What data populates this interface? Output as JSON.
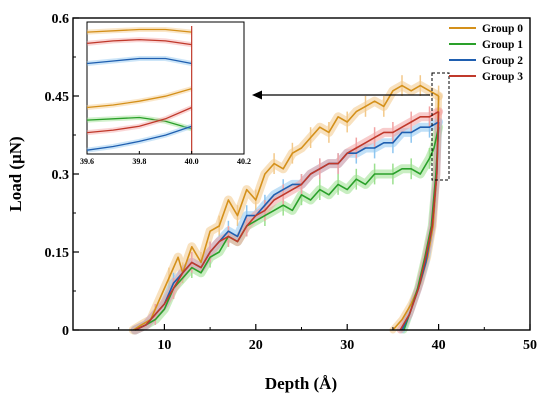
{
  "chart_data": {
    "type": "line",
    "xlabel": "Depth (Å)",
    "ylabel": "Load (μN)",
    "xlim": [
      0,
      50
    ],
    "ylim": [
      0,
      0.6
    ],
    "xticks": [
      "10",
      "20",
      "30",
      "40",
      "50"
    ],
    "yticks": [
      "0",
      "0.15",
      "0.3",
      "0.45",
      "0.6"
    ],
    "xtick_values": [
      10,
      20,
      30,
      40,
      50
    ],
    "ytick_values": [
      0,
      0.15,
      0.3,
      0.45,
      0.6
    ],
    "legend_position": "top-right",
    "grid": false,
    "series": [
      {
        "name": "Group 0",
        "color": "#d4901a",
        "band": "#f3c98a",
        "loading": [
          [
            6.6,
            0
          ],
          [
            7.5,
            0.01
          ],
          [
            8.5,
            0.02
          ],
          [
            9.5,
            0.06
          ],
          [
            10.5,
            0.1
          ],
          [
            11.5,
            0.14
          ],
          [
            12,
            0.11
          ],
          [
            13,
            0.16
          ],
          [
            14,
            0.13
          ],
          [
            15,
            0.19
          ],
          [
            16,
            0.2
          ],
          [
            17,
            0.25
          ],
          [
            18,
            0.22
          ],
          [
            19,
            0.27
          ],
          [
            20,
            0.25
          ],
          [
            21,
            0.3
          ],
          [
            22,
            0.32
          ],
          [
            23,
            0.31
          ],
          [
            24,
            0.34
          ],
          [
            25,
            0.35
          ],
          [
            26,
            0.37
          ],
          [
            27,
            0.39
          ],
          [
            28,
            0.38
          ],
          [
            29,
            0.41
          ],
          [
            30,
            0.4
          ],
          [
            31,
            0.42
          ],
          [
            32,
            0.43
          ],
          [
            33,
            0.44
          ],
          [
            34,
            0.43
          ],
          [
            35,
            0.46
          ],
          [
            36,
            0.47
          ],
          [
            37,
            0.46
          ],
          [
            38,
            0.47
          ],
          [
            39,
            0.46
          ],
          [
            40,
            0.45
          ]
        ],
        "unloading": [
          [
            40,
            0.45
          ],
          [
            39.8,
            0.3
          ],
          [
            39.4,
            0.2
          ],
          [
            38.8,
            0.14
          ],
          [
            38,
            0.09
          ],
          [
            37,
            0.05
          ],
          [
            36,
            0.02
          ],
          [
            35,
            0
          ]
        ]
      },
      {
        "name": "Group 1",
        "color": "#2aa02a",
        "band": "#9be08e",
        "loading": [
          [
            6.8,
            0
          ],
          [
            8,
            0.01
          ],
          [
            9,
            0.02
          ],
          [
            10,
            0.04
          ],
          [
            11,
            0.08
          ],
          [
            12,
            0.1
          ],
          [
            13,
            0.12
          ],
          [
            14,
            0.11
          ],
          [
            15,
            0.14
          ],
          [
            16,
            0.15
          ],
          [
            17,
            0.18
          ],
          [
            18,
            0.17
          ],
          [
            19,
            0.2
          ],
          [
            20,
            0.21
          ],
          [
            21,
            0.22
          ],
          [
            22,
            0.23
          ],
          [
            23,
            0.24
          ],
          [
            24,
            0.23
          ],
          [
            25,
            0.26
          ],
          [
            26,
            0.25
          ],
          [
            27,
            0.27
          ],
          [
            28,
            0.26
          ],
          [
            29,
            0.28
          ],
          [
            30,
            0.27
          ],
          [
            31,
            0.29
          ],
          [
            32,
            0.28
          ],
          [
            33,
            0.3
          ],
          [
            34,
            0.3
          ],
          [
            35,
            0.3
          ],
          [
            36,
            0.31
          ],
          [
            37,
            0.31
          ],
          [
            38,
            0.3
          ],
          [
            39,
            0.33
          ],
          [
            39.5,
            0.35
          ],
          [
            40,
            0.39
          ]
        ],
        "unloading": [
          [
            40,
            0.39
          ],
          [
            39.7,
            0.3
          ],
          [
            39.2,
            0.2
          ],
          [
            38.5,
            0.14
          ],
          [
            37.7,
            0.08
          ],
          [
            37,
            0.04
          ],
          [
            36.2,
            0
          ]
        ]
      },
      {
        "name": "Group 2",
        "color": "#1f5fb0",
        "band": "#8ec6f0",
        "loading": [
          [
            6.8,
            0
          ],
          [
            8,
            0.01
          ],
          [
            9,
            0.03
          ],
          [
            10,
            0.05
          ],
          [
            11,
            0.09
          ],
          [
            12,
            0.11
          ],
          [
            13,
            0.13
          ],
          [
            14,
            0.12
          ],
          [
            15,
            0.15
          ],
          [
            16,
            0.17
          ],
          [
            17,
            0.19
          ],
          [
            18,
            0.18
          ],
          [
            19,
            0.22
          ],
          [
            20,
            0.22
          ],
          [
            21,
            0.24
          ],
          [
            22,
            0.26
          ],
          [
            23,
            0.27
          ],
          [
            24,
            0.28
          ],
          [
            25,
            0.28
          ],
          [
            26,
            0.3
          ],
          [
            27,
            0.31
          ],
          [
            28,
            0.32
          ],
          [
            29,
            0.32
          ],
          [
            30,
            0.34
          ],
          [
            31,
            0.34
          ],
          [
            32,
            0.35
          ],
          [
            33,
            0.35
          ],
          [
            34,
            0.36
          ],
          [
            35,
            0.36
          ],
          [
            36,
            0.38
          ],
          [
            37,
            0.38
          ],
          [
            38,
            0.39
          ],
          [
            39,
            0.39
          ],
          [
            40,
            0.4
          ]
        ],
        "unloading": [
          [
            40,
            0.4
          ],
          [
            39.8,
            0.3
          ],
          [
            39.3,
            0.2
          ],
          [
            38.6,
            0.13
          ],
          [
            37.8,
            0.08
          ],
          [
            36.8,
            0.03
          ],
          [
            36,
            0
          ]
        ]
      },
      {
        "name": "Group 3",
        "color": "#c0392b",
        "band": "#f3a3a3",
        "loading": [
          [
            6.8,
            0
          ],
          [
            8,
            0.01
          ],
          [
            9,
            0.03
          ],
          [
            10,
            0.05
          ],
          [
            11,
            0.08
          ],
          [
            12,
            0.11
          ],
          [
            13,
            0.13
          ],
          [
            14,
            0.12
          ],
          [
            15,
            0.15
          ],
          [
            16,
            0.17
          ],
          [
            17,
            0.18
          ],
          [
            18,
            0.17
          ],
          [
            19,
            0.2
          ],
          [
            20,
            0.22
          ],
          [
            21,
            0.23
          ],
          [
            22,
            0.25
          ],
          [
            23,
            0.26
          ],
          [
            24,
            0.27
          ],
          [
            25,
            0.28
          ],
          [
            26,
            0.3
          ],
          [
            27,
            0.31
          ],
          [
            28,
            0.32
          ],
          [
            29,
            0.32
          ],
          [
            30,
            0.34
          ],
          [
            31,
            0.35
          ],
          [
            32,
            0.36
          ],
          [
            33,
            0.37
          ],
          [
            34,
            0.38
          ],
          [
            35,
            0.38
          ],
          [
            36,
            0.39
          ],
          [
            37,
            0.4
          ],
          [
            38,
            0.41
          ],
          [
            39,
            0.41
          ],
          [
            40,
            0.42
          ]
        ],
        "unloading": [
          [
            40,
            0.42
          ],
          [
            39.8,
            0.3
          ],
          [
            39.3,
            0.2
          ],
          [
            38.6,
            0.14
          ],
          [
            37.8,
            0.08
          ],
          [
            36.8,
            0.03
          ],
          [
            35.8,
            0
          ]
        ]
      }
    ],
    "inset": {
      "xlim": [
        39.6,
        40.2
      ],
      "xticks": [
        "39.6",
        "39.8",
        "40.0",
        "40.2"
      ],
      "xtick_values": [
        39.6,
        39.8,
        40.0,
        40.2
      ],
      "ylim": [
        0.375,
        0.48
      ],
      "series": [
        {
          "name": "Group 0",
          "points": [
            [
              39.6,
              0.472
            ],
            [
              39.7,
              0.473
            ],
            [
              39.8,
              0.474
            ],
            [
              39.9,
              0.474
            ],
            [
              40,
              0.472
            ]
          ]
        },
        {
          "name": "Group 3",
          "points": [
            [
              39.6,
              0.463
            ],
            [
              39.7,
              0.465
            ],
            [
              39.8,
              0.466
            ],
            [
              39.9,
              0.465
            ],
            [
              40,
              0.462
            ]
          ]
        },
        {
          "name": "Group 2",
          "points": [
            [
              39.6,
              0.447
            ],
            [
              39.7,
              0.449
            ],
            [
              39.8,
              0.451
            ],
            [
              39.9,
              0.451
            ],
            [
              40,
              0.447
            ]
          ]
        },
        {
          "name": "Group 0",
          "points": [
            [
              39.6,
              0.412
            ],
            [
              39.7,
              0.414
            ],
            [
              39.8,
              0.417
            ],
            [
              39.9,
              0.421
            ],
            [
              40,
              0.427
            ]
          ]
        },
        {
          "name": "Group 1",
          "points": [
            [
              39.6,
              0.402
            ],
            [
              39.7,
              0.403
            ],
            [
              39.8,
              0.404
            ],
            [
              39.9,
              0.401
            ],
            [
              40,
              0.395
            ]
          ]
        },
        {
          "name": "Group 3",
          "points": [
            [
              39.6,
              0.392
            ],
            [
              39.7,
              0.394
            ],
            [
              39.8,
              0.397
            ],
            [
              39.9,
              0.403
            ],
            [
              40,
              0.412
            ]
          ]
        },
        {
          "name": "Group 2",
          "points": [
            [
              39.6,
              0.378
            ],
            [
              39.7,
              0.381
            ],
            [
              39.8,
              0.385
            ],
            [
              39.9,
              0.39
            ],
            [
              40,
              0.397
            ]
          ]
        }
      ]
    }
  }
}
